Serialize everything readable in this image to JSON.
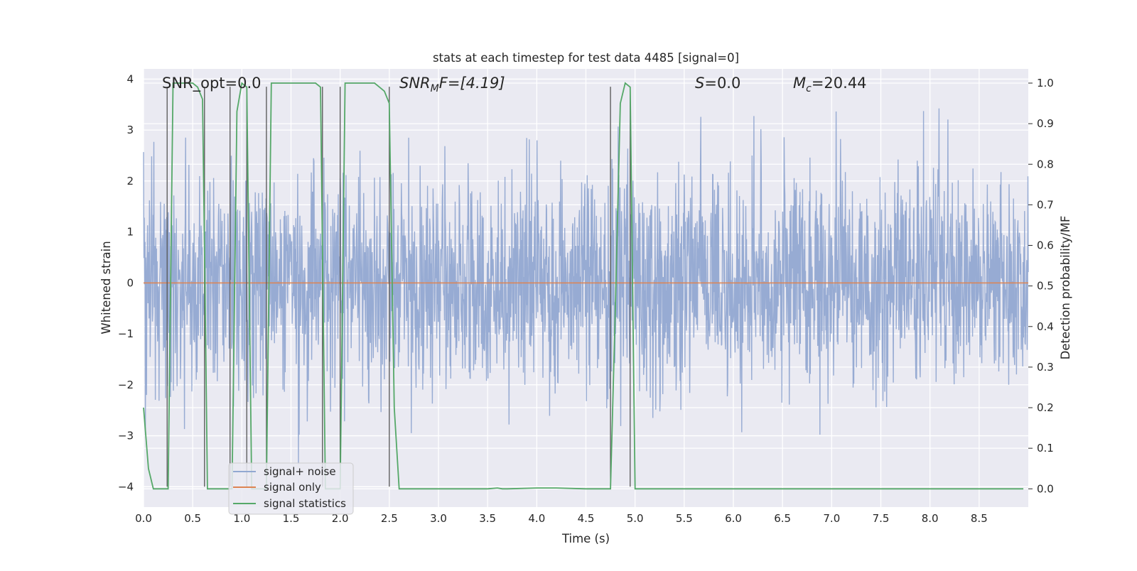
{
  "chart_data": {
    "type": "line",
    "title": "stats at each timestep for test data 4485 [signal=0]",
    "xlabel": "Time (s)",
    "ylabel_left": "Whitened strain",
    "ylabel_right": "Detection probability/MF",
    "xlim": [
      0.0,
      9.0
    ],
    "ylim_left": [
      -4.4,
      4.2
    ],
    "ylim_right": [
      -0.045,
      1.035
    ],
    "x_ticks": [
      0.0,
      0.5,
      1.0,
      1.5,
      2.0,
      2.5,
      3.0,
      3.5,
      4.0,
      4.5,
      5.0,
      5.5,
      6.0,
      6.5,
      7.0,
      7.5,
      8.0,
      8.5
    ],
    "x_tick_labels": [
      "0.0",
      "0.5",
      "1.0",
      "1.5",
      "2.0",
      "2.5",
      "3.0",
      "3.5",
      "4.0",
      "4.5",
      "5.0",
      "5.5",
      "6.0",
      "6.5",
      "7.0",
      "7.5",
      "8.0",
      "8.5"
    ],
    "y_left_ticks": [
      4,
      3,
      2,
      1,
      0,
      -1,
      -2,
      -3,
      -4
    ],
    "y_left_tick_labels": [
      "4",
      "3",
      "2",
      "1",
      "0",
      "−1",
      "−2",
      "−3",
      "−4"
    ],
    "y_right_ticks": [
      1.0,
      0.9,
      0.8,
      0.7,
      0.6,
      0.5,
      0.4,
      0.3,
      0.2,
      0.1,
      0.0
    ],
    "y_right_tick_labels": [
      "1.0",
      "0.9",
      "0.8",
      "0.7",
      "0.6",
      "0.5",
      "0.4",
      "0.3",
      "0.2",
      "0.1",
      "0.0"
    ],
    "grid": true,
    "legend_location": "lower-left",
    "annotations": {
      "snr_opt": "SNR_opt=0.0",
      "snr_mf_base": "SNR",
      "snr_mf_sub": "M",
      "snr_mf_rest": "F=[4.19]",
      "s_italic": "S",
      "s_rest": "=0.0",
      "mc_base": "M",
      "mc_sub": "c",
      "mc_rest": "=20.44"
    },
    "series": [
      {
        "name": "signal+ noise",
        "color": "#92a8d1",
        "description_note": "whitened strain noise, amplitude roughly ±2.5",
        "noise_seed": 4485,
        "noise_sigma": 1.0,
        "duration": 9.0
      },
      {
        "name": "signal only",
        "color": "#dd8452",
        "x": [
          0.0,
          9.0
        ],
        "y": [
          0.0,
          0.0
        ]
      },
      {
        "name": "signal statistics",
        "color": "#55a868",
        "axis": "right",
        "x": [
          0.0,
          0.05,
          0.1,
          0.15,
          0.2,
          0.25,
          0.3,
          0.35,
          0.4,
          0.45,
          0.5,
          0.55,
          0.6,
          0.625,
          0.65,
          0.7,
          0.75,
          0.8,
          0.85,
          0.9,
          0.95,
          1.0,
          1.05,
          1.1,
          1.15,
          1.2,
          1.25,
          1.3,
          1.35,
          1.4,
          1.45,
          1.5,
          1.55,
          1.6,
          1.65,
          1.7,
          1.75,
          1.8,
          1.85,
          1.9,
          1.95,
          2.0,
          2.05,
          2.1,
          2.15,
          2.2,
          2.25,
          2.3,
          2.35,
          2.4,
          2.45,
          2.5,
          2.55,
          2.6,
          2.65,
          3.0,
          3.5,
          3.6,
          3.65,
          3.7,
          4.0,
          4.2,
          4.5,
          4.75,
          4.8,
          4.85,
          4.9,
          4.95,
          5.0,
          5.1,
          5.5,
          6.0,
          7.0,
          8.0,
          8.95
        ],
        "y": [
          0.2,
          0.05,
          0.0,
          0.0,
          0.0,
          0.0,
          1.0,
          1.0,
          1.0,
          1.0,
          1.0,
          0.99,
          0.96,
          0.5,
          0.0,
          0.0,
          0.0,
          0.0,
          0.0,
          0.0,
          0.93,
          1.0,
          0.99,
          0.0,
          0.0,
          0.0,
          0.0,
          1.0,
          1.0,
          1.0,
          1.0,
          1.0,
          1.0,
          1.0,
          1.0,
          1.0,
          1.0,
          0.99,
          0.0,
          0.0,
          0.0,
          0.0,
          1.0,
          1.0,
          1.0,
          1.0,
          1.0,
          1.0,
          1.0,
          0.99,
          0.98,
          0.95,
          0.2,
          0.0,
          0.0,
          0.0,
          0.0,
          0.002,
          0.0,
          0.0,
          0.002,
          0.002,
          0.0,
          0.0,
          0.45,
          0.95,
          1.0,
          0.99,
          0.0,
          0.0,
          0.0,
          0.0,
          0.0,
          0.0,
          0.0
        ]
      }
    ],
    "vertical_lines": {
      "color": "#555555",
      "x": [
        0.24,
        0.62,
        0.88,
        1.05,
        1.25,
        1.82,
        2.0,
        2.5,
        4.75,
        4.95
      ]
    }
  }
}
